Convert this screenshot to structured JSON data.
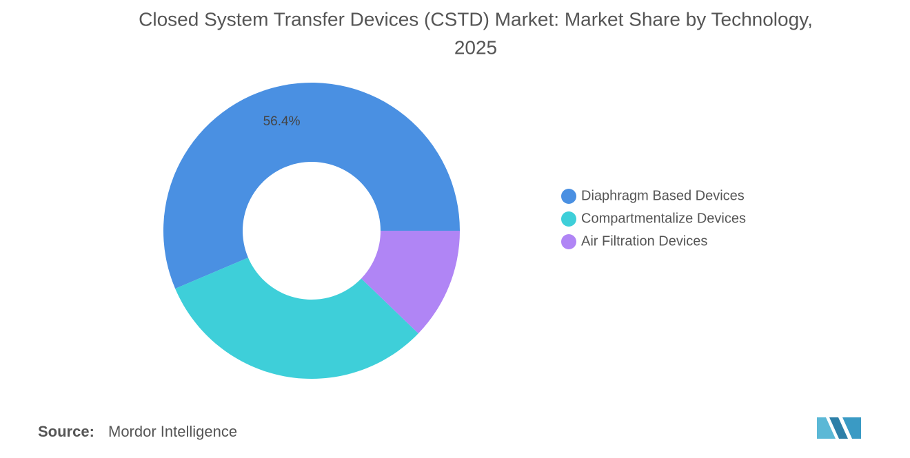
{
  "chart_data": {
    "type": "donut",
    "title": "Closed System Transfer Devices (CSTD) Market: Market Share by Technology,",
    "subtitle": "2025",
    "categories": [
      "Diaphragm Based Devices",
      "Compartmentalize Devices",
      "Air Filtration Devices"
    ],
    "values": [
      56.4,
      31.4,
      12.2
    ],
    "value_labels": [
      "56.4%",
      null,
      null
    ],
    "colors": [
      "#4a90e2",
      "#3ecfd9",
      "#b085f5"
    ],
    "legend": "right",
    "source_label": "Source:",
    "source": "Mordor Intelligence"
  }
}
